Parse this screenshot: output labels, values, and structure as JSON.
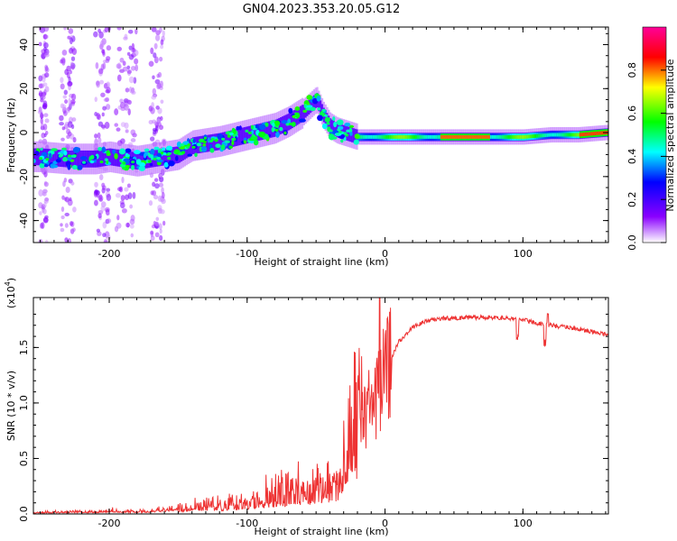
{
  "figure": {
    "title": "GN04.2023.353.20.05.G12"
  },
  "chart_data": [
    {
      "type": "heatmap",
      "title": "",
      "xlabel": "Height of straight line (km)",
      "ylabel": "Frequency (Hz)",
      "xlim": [
        -255,
        162
      ],
      "ylim": [
        -50,
        48
      ],
      "xticks": [
        -200,
        -100,
        0,
        100
      ],
      "yticks": [
        -40,
        -20,
        0,
        20,
        40
      ],
      "colorbar": {
        "label": "Normalized spectral amplitude",
        "range": [
          0,
          1
        ],
        "ticks": [
          "0.0",
          "0.2",
          "0.4",
          "0.6",
          "0.8"
        ],
        "colormap": [
          "#ffffff",
          "#8a00ff",
          "#0000ff",
          "#00ffff",
          "#00ff00",
          "#ffff00",
          "#ff0000",
          "#ff0099"
        ]
      },
      "ridge": {
        "x": [
          -250,
          -230,
          -210,
          -200,
          -190,
          -180,
          -160,
          -150,
          -140,
          -120,
          -100,
          -80,
          -70,
          -60,
          -55,
          -50,
          -45,
          -40,
          -35,
          -30,
          -25,
          -20,
          -15,
          -10,
          0,
          20,
          50,
          80,
          100,
          120,
          140,
          160
        ],
        "y": [
          -11,
          -12,
          -12,
          -11,
          -12,
          -13,
          -11,
          -10,
          -6,
          -4,
          -1,
          2,
          5,
          9,
          12,
          15,
          8,
          3,
          1,
          0,
          -1,
          -2,
          -2,
          -2,
          -2,
          -2,
          -2,
          -2,
          -2,
          -1,
          -1,
          0
        ]
      }
    },
    {
      "type": "line",
      "title": "",
      "xlabel": "Height of straight line (km)",
      "ylabel": "SNR (10 * v/v)",
      "yscale_label": "(x10",
      "yscale_exp": "4",
      "yscale_close": ")",
      "xlim": [
        -255,
        162
      ],
      "ylim": [
        0,
        1.95
      ],
      "xticks": [
        -200,
        -100,
        0,
        100
      ],
      "yticks": [
        "0.0",
        "0.5",
        "1.0",
        "1.5"
      ],
      "series": [
        {
          "color": "#ee3333",
          "x": [
            -255,
            -230,
            -210,
            -200,
            -180,
            -160,
            -150,
            -140,
            -130,
            -120,
            -110,
            -100,
            -90,
            -80,
            -70,
            -60,
            -50,
            -40,
            -35,
            -30,
            -27,
            -24,
            -20,
            -15,
            -10,
            -5,
            0,
            5,
            10,
            20,
            30,
            40,
            60,
            80,
            90,
            100,
            110,
            120,
            140,
            162
          ],
          "y": [
            0.01,
            0.02,
            0.02,
            0.03,
            0.02,
            0.04,
            0.06,
            0.09,
            0.12,
            0.1,
            0.13,
            0.16,
            0.2,
            0.24,
            0.26,
            0.3,
            0.34,
            0.37,
            0.45,
            0.7,
            1.1,
            1.35,
            1.2,
            0.9,
            0.95,
            1.05,
            1.25,
            1.42,
            1.55,
            1.68,
            1.74,
            1.76,
            1.77,
            1.77,
            1.76,
            1.75,
            1.72,
            1.7,
            1.67,
            1.61
          ]
        }
      ]
    }
  ]
}
